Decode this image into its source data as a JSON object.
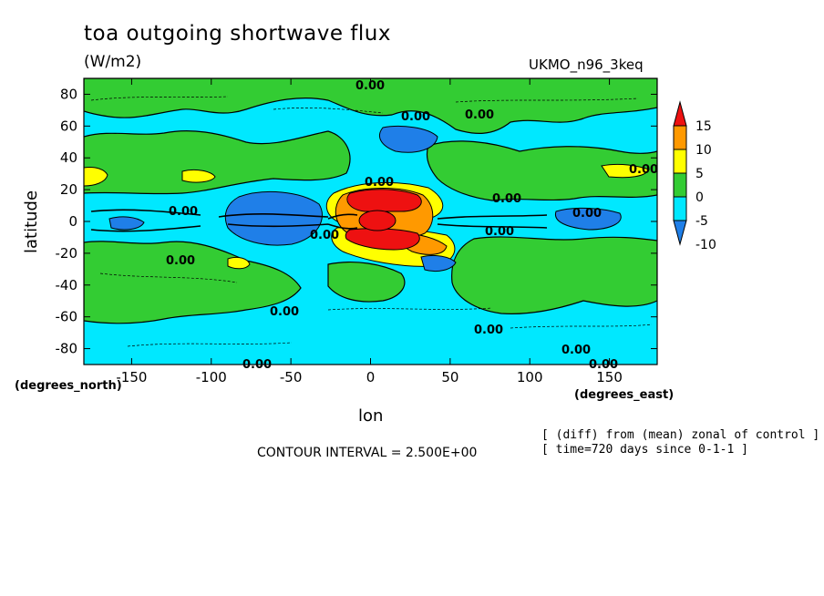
{
  "chart_data": {
    "type": "heatmap",
    "title": "toa outgoing shortwave flux",
    "units": "(W/m2)",
    "model": "UKMO_n96_3keq",
    "xlabel": "lon",
    "ylabel": "latitude",
    "x_unit_label": "(degrees_east)",
    "y_unit_label": "(degrees_north)",
    "xlim": [
      -180,
      180
    ],
    "ylim": [
      -90,
      90
    ],
    "x_ticks": [
      -150,
      -100,
      -50,
      0,
      50,
      100,
      150
    ],
    "y_ticks": [
      -80,
      -60,
      -40,
      -20,
      0,
      20,
      40,
      60,
      80
    ],
    "x_tick_labels": [
      "-150",
      "-100",
      "-50",
      "0",
      "50",
      "100",
      "150"
    ],
    "y_tick_labels": [
      "-80",
      "-60",
      "-40",
      "-20",
      "0",
      "20",
      "40",
      "60",
      "80"
    ],
    "colorbar": {
      "levels": [
        -10,
        -5,
        0,
        5,
        10,
        15
      ],
      "labels": [
        "-10",
        "-5",
        "0",
        "5",
        "10",
        "15"
      ],
      "colors": [
        "#1f7fe8",
        "#00e8ff",
        "#33cc33",
        "#ffff00",
        "#ff9900",
        "#ee1111",
        "#1f7fe8"
      ],
      "low_color": "#1f7fe8",
      "band_colors": [
        "#00e8ff",
        "#33cc33",
        "#ffff00",
        "#ff9900"
      ],
      "high_color": "#ee1111"
    },
    "contour_labels": [
      "0.00",
      "0.00",
      "0.00",
      "0.00",
      "0.00",
      "0.00",
      "0.00",
      "0.00",
      "0.00",
      "0.00",
      "0.00",
      "0.00",
      "0.00",
      "0.00",
      "0.00",
      "0.00"
    ],
    "contour_interval_text": "CONTOUR INTERVAL = 2.500E+00",
    "notes": [
      "[ (diff) from (mean) zonal of control ]",
      "[ time=720 days since 0-1-1 ]"
    ]
  }
}
